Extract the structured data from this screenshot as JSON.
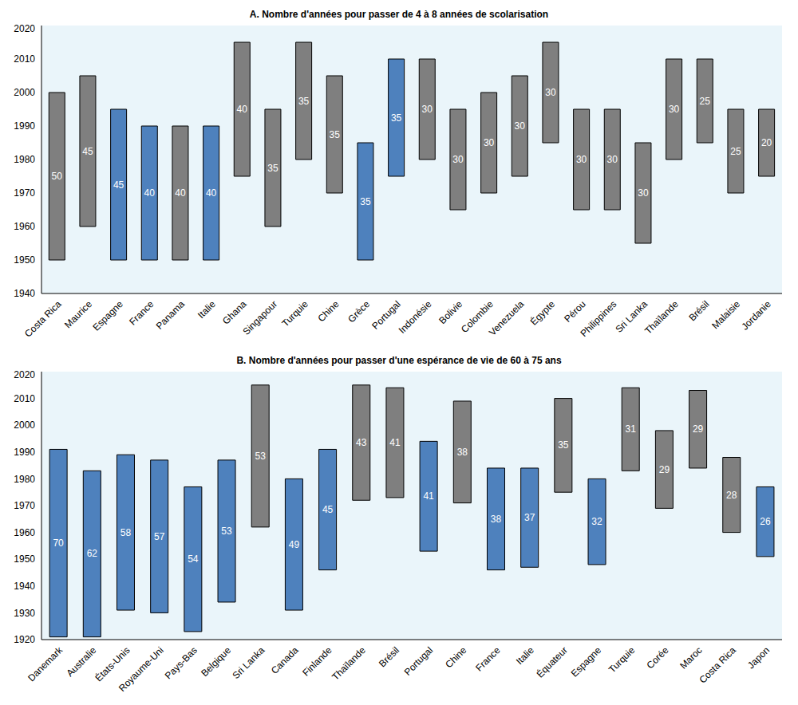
{
  "chart_data": [
    {
      "type": "bar",
      "title": "A. Nombre d'années pour passer de 4 à 8 années de scolarisation",
      "categories": [
        "Costa Rica",
        "Maurice",
        "Espagne",
        "France",
        "Panama",
        "Italie",
        "Ghana",
        "Singapour",
        "Turquie",
        "Chine",
        "Grèce",
        "Portugal",
        "Indonésie",
        "Bolivie",
        "Colombie",
        "Venezuela",
        "Égypte",
        "Pérou",
        "Philippines",
        "Sri Lanka",
        "Thaïlande",
        "Brésil",
        "Malaisie",
        "Jordanie"
      ],
      "low": [
        1950,
        1960,
        1950,
        1950,
        1950,
        1950,
        1975,
        1960,
        1980,
        1970,
        1950,
        1975,
        1980,
        1965,
        1970,
        1975,
        1985,
        1965,
        1965,
        1955,
        1980,
        1985,
        1970,
        1975
      ],
      "high": [
        2000,
        2005,
        1995,
        1990,
        1990,
        1990,
        2015,
        1995,
        2015,
        2005,
        1985,
        2010,
        2010,
        1995,
        2000,
        2005,
        2015,
        1995,
        1995,
        1985,
        2010,
        2010,
        1995,
        1995
      ],
      "durations": [
        50,
        45,
        45,
        40,
        40,
        40,
        40,
        35,
        35,
        35,
        35,
        35,
        30,
        30,
        30,
        30,
        30,
        30,
        30,
        30,
        30,
        25,
        25,
        20
      ],
      "colors": [
        "#7f7f7f",
        "#7f7f7f",
        "#4e81bd",
        "#4e81bd",
        "#7f7f7f",
        "#4e81bd",
        "#7f7f7f",
        "#7f7f7f",
        "#7f7f7f",
        "#7f7f7f",
        "#4e81bd",
        "#4e81bd",
        "#7f7f7f",
        "#7f7f7f",
        "#7f7f7f",
        "#7f7f7f",
        "#7f7f7f",
        "#7f7f7f",
        "#7f7f7f",
        "#7f7f7f",
        "#7f7f7f",
        "#7f7f7f",
        "#7f7f7f",
        "#7f7f7f"
      ],
      "ylim": [
        1940,
        2020
      ],
      "yticks": [
        1940,
        1950,
        1960,
        1970,
        1980,
        1990,
        2000,
        2010,
        2020
      ],
      "grid": false
    },
    {
      "type": "bar",
      "title": "B. Nombre d'années pour passer d'une espérance de vie de 60 à 75 ans",
      "categories": [
        "Danemark",
        "Australie",
        "États-Unis",
        "Royaume-Uni",
        "Pays-Bas",
        "Belgique",
        "Sri Lanka",
        "Canada",
        "Finlande",
        "Thaïlande",
        "Brésil",
        "Portugal",
        "Chine",
        "France",
        "Italie",
        "Équateur",
        "Espagne",
        "Turquie",
        "Corée",
        "Maroc",
        "Costa Rica",
        "Japon"
      ],
      "low": [
        1921,
        1921,
        1931,
        1930,
        1923,
        1934,
        1962,
        1931,
        1946,
        1972,
        1973,
        1953,
        1971,
        1946,
        1947,
        1975,
        1948,
        1983,
        1969,
        1984,
        1960,
        1951
      ],
      "high": [
        1991,
        1983,
        1989,
        1987,
        1977,
        1987,
        2015,
        1980,
        1991,
        2015,
        2014,
        1994,
        2009,
        1984,
        1984,
        2010,
        1980,
        2014,
        1998,
        2013,
        1988,
        1977
      ],
      "durations": [
        70,
        62,
        58,
        57,
        54,
        53,
        53,
        49,
        45,
        43,
        41,
        41,
        38,
        38,
        37,
        35,
        32,
        31,
        29,
        29,
        28,
        26
      ],
      "colors": [
        "#4e81bd",
        "#4e81bd",
        "#4e81bd",
        "#4e81bd",
        "#4e81bd",
        "#4e81bd",
        "#7f7f7f",
        "#4e81bd",
        "#4e81bd",
        "#7f7f7f",
        "#7f7f7f",
        "#4e81bd",
        "#7f7f7f",
        "#4e81bd",
        "#4e81bd",
        "#7f7f7f",
        "#4e81bd",
        "#7f7f7f",
        "#7f7f7f",
        "#7f7f7f",
        "#7f7f7f",
        "#4e81bd"
      ],
      "ylim": [
        1920,
        2020
      ],
      "yticks": [
        1920,
        1930,
        1940,
        1950,
        1960,
        1970,
        1980,
        1990,
        2000,
        2010,
        2020
      ],
      "grid": false
    }
  ]
}
